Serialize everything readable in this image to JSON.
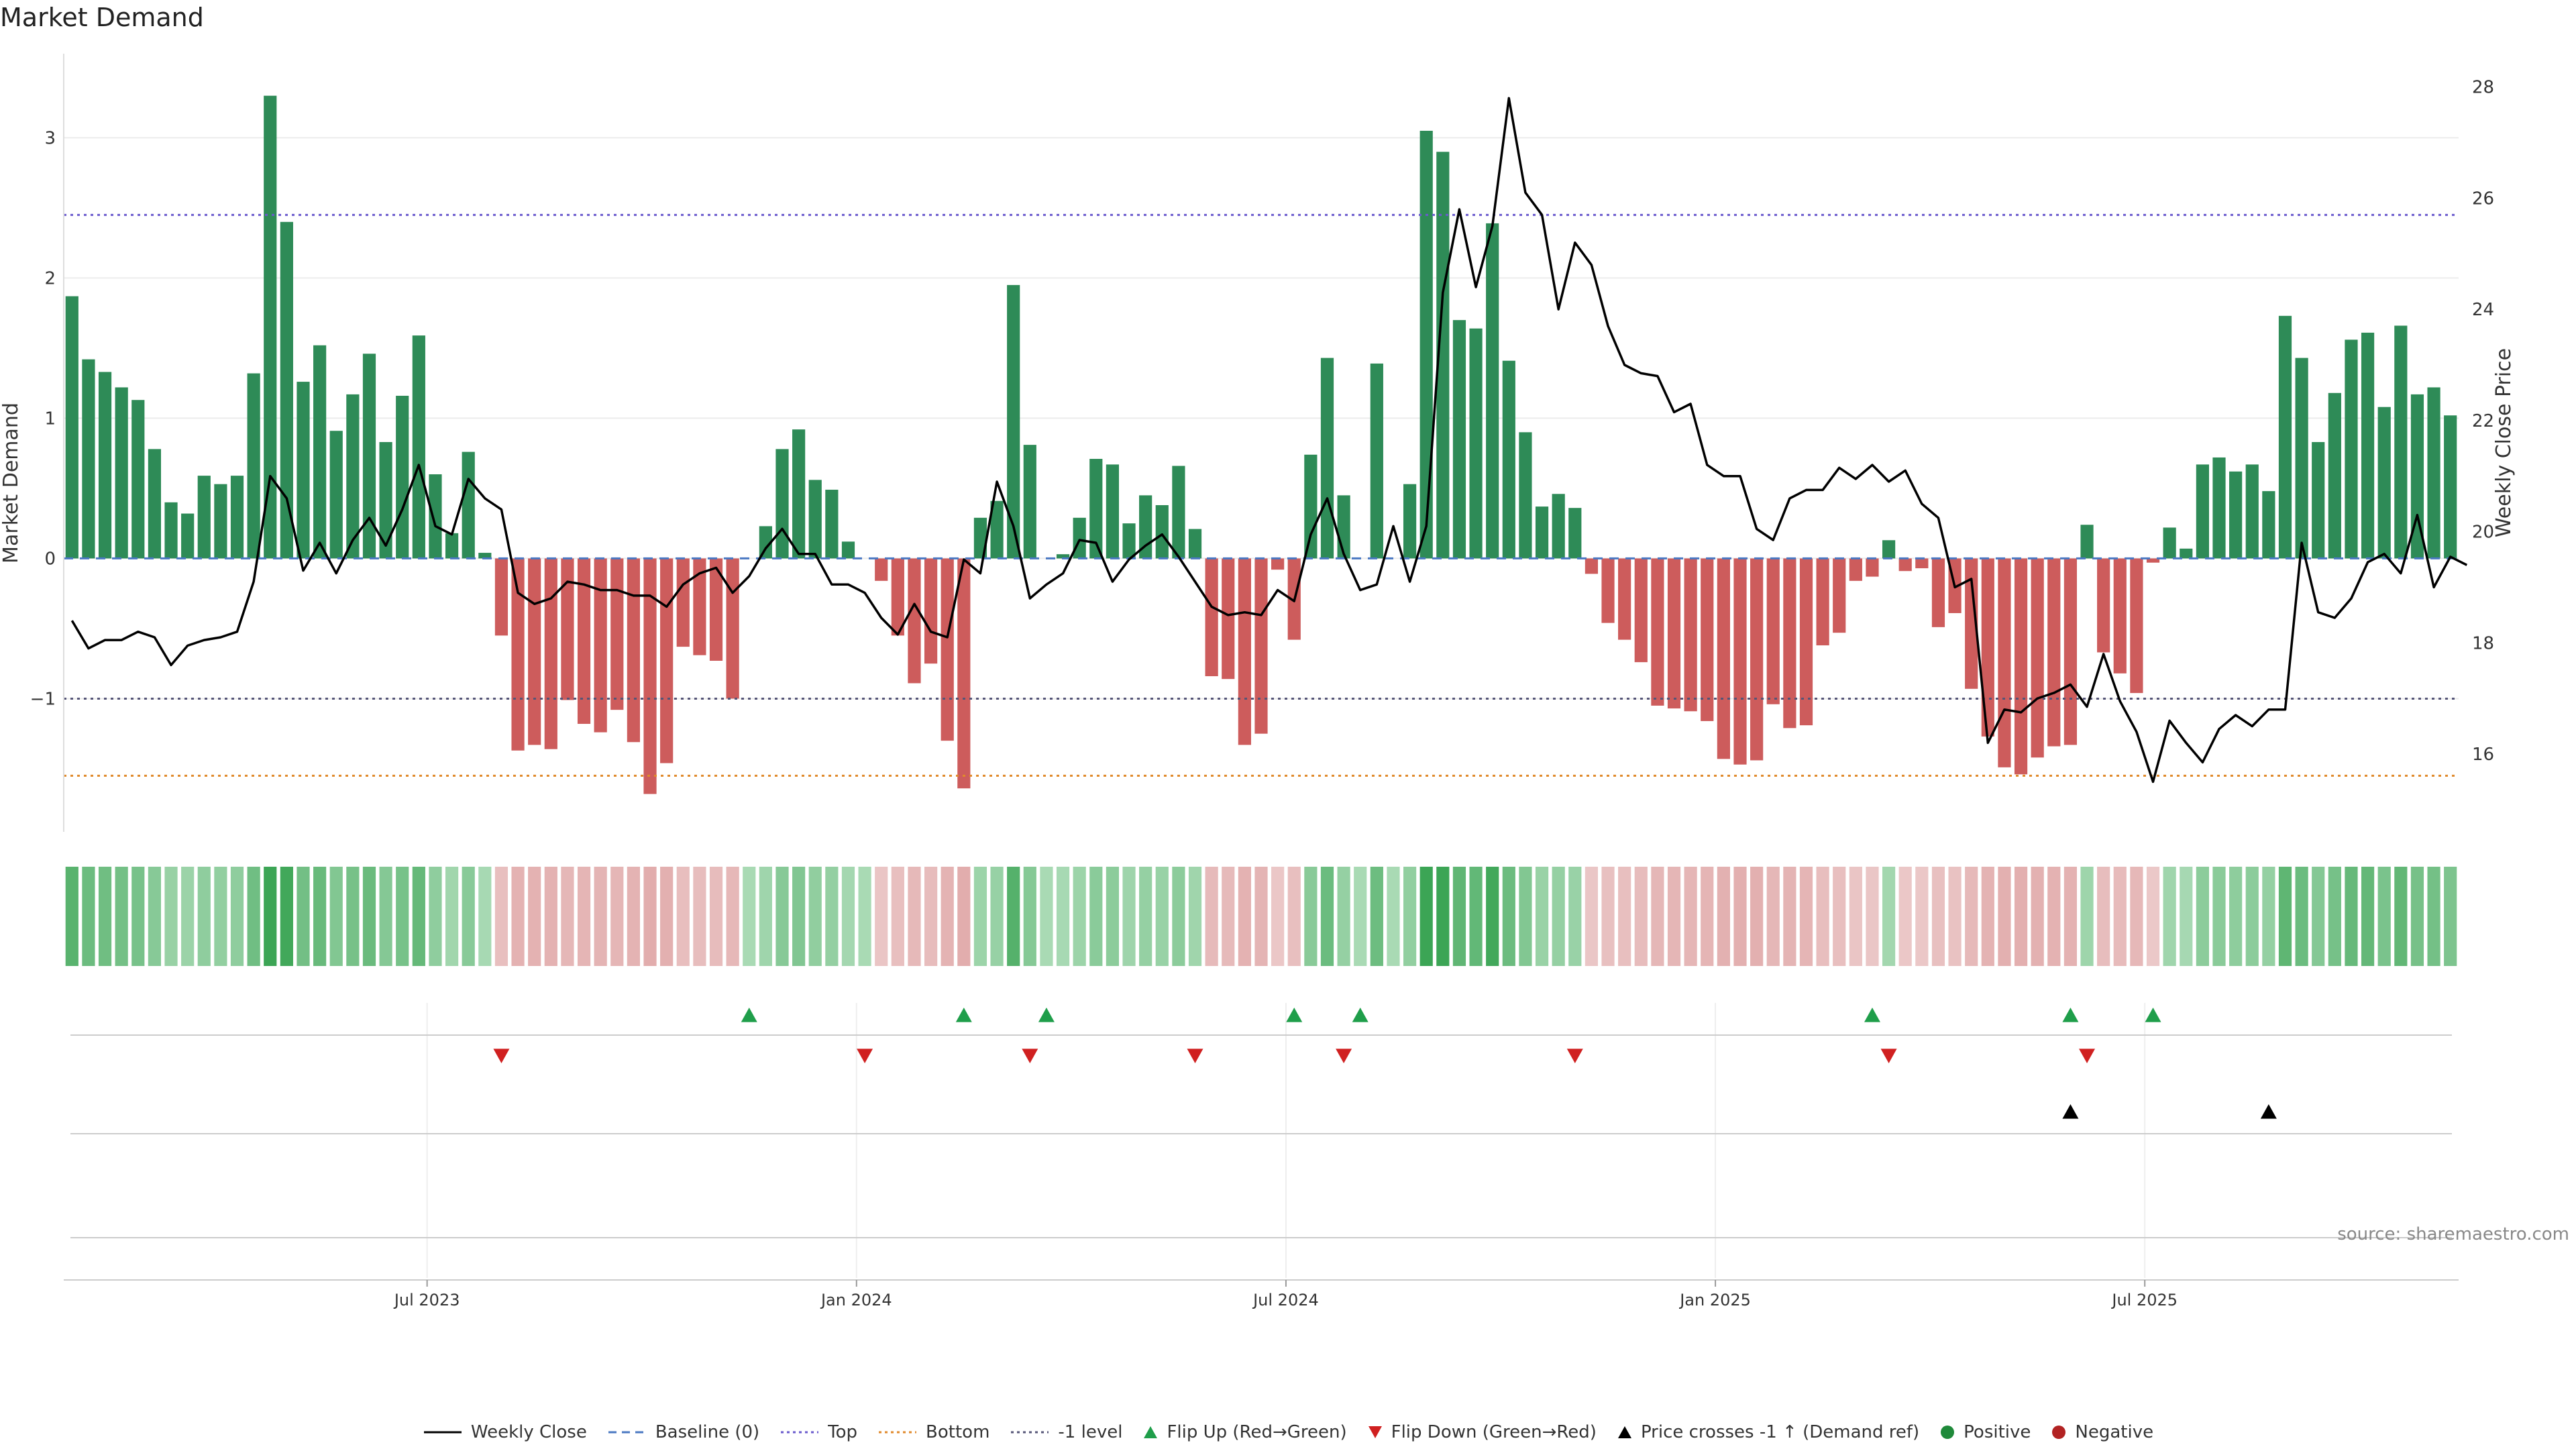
{
  "title": "Market Demand",
  "source": "source: sharemaestro.com",
  "colors": {
    "positive": "#2e8b57",
    "negative": "#cd5c5c",
    "price": "#000000",
    "baseline": "#4a78c2",
    "top": "#6a5acd",
    "bottom": "#e08a2c",
    "minus_one": "#555577",
    "flip_up": "#1f9e4a",
    "flip_down": "#d02020"
  },
  "legend": [
    {
      "label": "Weekly Close",
      "kind": "line-solid",
      "color": "#000000"
    },
    {
      "label": "Baseline (0)",
      "kind": "line-dash",
      "color": "#4a78c2"
    },
    {
      "label": "Top",
      "kind": "line-dot",
      "color": "#6a5acd"
    },
    {
      "label": "Bottom",
      "kind": "line-dot",
      "color": "#e08a2c"
    },
    {
      "label": "-1 level",
      "kind": "line-dot",
      "color": "#555577"
    },
    {
      "label": "Flip Up (Red→Green)",
      "kind": "tri-up",
      "color": "#1f9e4a"
    },
    {
      "label": "Flip Down (Green→Red)",
      "kind": "tri-down",
      "color": "#d02020"
    },
    {
      "label": "Price crosses -1 ↑ (Demand ref)",
      "kind": "tri-up",
      "color": "#000000"
    },
    {
      "label": "Positive",
      "kind": "dot",
      "color": "#1f8a3a"
    },
    {
      "label": "Negative",
      "kind": "dot",
      "color": "#b22222"
    }
  ],
  "chart_data": {
    "type": "bar",
    "ylabel": "Market Demand",
    "y2label": "Weekly Close Price",
    "ylim": [
      -1.95,
      3.6
    ],
    "y2lim": [
      14.6,
      28.6
    ],
    "yticks": [
      -1,
      0,
      1,
      2,
      3
    ],
    "y2ticks": [
      16,
      18,
      20,
      22,
      24,
      26,
      28
    ],
    "xticks": [
      {
        "label": "Jul 2023",
        "index": 22
      },
      {
        "label": "Jan 2024",
        "index": 48
      },
      {
        "label": "Jul 2024",
        "index": 74
      },
      {
        "label": "Jan 2025",
        "index": 100
      },
      {
        "label": "Jul 2025",
        "index": 126
      }
    ],
    "reference_lines": {
      "baseline": 0,
      "top": 2.45,
      "bottom": -1.55,
      "minus_one": -1
    },
    "demand": [
      1.87,
      1.42,
      1.33,
      1.22,
      1.13,
      0.78,
      0.4,
      0.32,
      0.59,
      0.53,
      0.59,
      1.32,
      3.3,
      2.4,
      1.26,
      1.52,
      0.91,
      1.17,
      1.46,
      0.83,
      1.16,
      1.59,
      0.6,
      0.18,
      0.76,
      0.04,
      -0.55,
      -1.37,
      -1.33,
      -1.36,
      -1.01,
      -1.18,
      -1.24,
      -1.08,
      -1.31,
      -1.68,
      -1.46,
      -0.63,
      -0.69,
      -0.73,
      -1.0,
      0.0,
      0.23,
      0.78,
      0.92,
      0.56,
      0.49,
      0.12,
      0.0,
      -0.16,
      -0.55,
      -0.89,
      -0.75,
      -1.3,
      -1.64,
      0.29,
      0.41,
      1.95,
      0.81,
      0.0,
      0.03,
      0.29,
      0.71,
      0.67,
      0.25,
      0.45,
      0.38,
      0.66,
      0.21,
      -0.84,
      -0.86,
      -1.33,
      -1.25,
      -0.08,
      -0.58,
      0.74,
      1.43,
      0.45,
      0.0,
      1.39,
      0.0,
      0.53,
      3.05,
      2.9,
      1.7,
      1.64,
      2.39,
      1.41,
      0.9,
      0.37,
      0.46,
      0.36,
      -0.11,
      -0.46,
      -0.58,
      -0.74,
      -1.05,
      -1.07,
      -1.09,
      -1.16,
      -1.43,
      -1.47,
      -1.44,
      -1.04,
      -1.21,
      -1.19,
      -0.62,
      -0.53,
      -0.16,
      -0.13,
      0.13,
      -0.09,
      -0.07,
      -0.49,
      -0.39,
      -0.93,
      -1.27,
      -1.49,
      -1.54,
      -1.42,
      -1.34,
      -1.33,
      0.24,
      -0.67,
      -0.82,
      -0.96,
      -0.03,
      0.22,
      0.07,
      0.67,
      0.72,
      0.62,
      0.67,
      0.48,
      1.73,
      1.43,
      0.83,
      1.18,
      1.56,
      1.61,
      1.08,
      1.66,
      1.17,
      1.22,
      1.02
    ],
    "price": [
      18.4,
      17.9,
      18.05,
      18.05,
      18.2,
      18.1,
      17.6,
      17.95,
      18.05,
      18.1,
      18.2,
      19.1,
      21.0,
      20.6,
      19.3,
      19.8,
      19.25,
      19.85,
      20.25,
      19.75,
      20.4,
      21.2,
      20.1,
      19.95,
      20.95,
      20.6,
      20.4,
      18.9,
      18.7,
      18.8,
      19.1,
      19.05,
      18.95,
      18.95,
      18.85,
      18.85,
      18.65,
      19.05,
      19.25,
      19.35,
      18.9,
      19.2,
      19.7,
      20.05,
      19.6,
      19.6,
      19.05,
      19.05,
      18.9,
      18.45,
      18.15,
      18.7,
      18.2,
      18.1,
      19.5,
      19.25,
      20.9,
      20.1,
      18.8,
      19.05,
      19.25,
      19.85,
      19.8,
      19.1,
      19.5,
      19.75,
      19.95,
      19.55,
      19.1,
      18.65,
      18.5,
      18.55,
      18.5,
      18.95,
      18.75,
      19.95,
      20.6,
      19.6,
      18.95,
      19.05,
      20.1,
      19.1,
      20.1,
      24.3,
      25.8,
      24.4,
      25.5,
      27.8,
      26.1,
      25.7,
      24.0,
      25.2,
      24.8,
      23.7,
      23.0,
      22.85,
      22.8,
      22.15,
      22.3,
      21.2,
      21.0,
      21.0,
      20.05,
      19.85,
      20.6,
      20.75,
      20.75,
      21.15,
      20.95,
      21.2,
      20.9,
      21.1,
      20.5,
      20.25,
      19.0,
      19.15,
      16.2,
      16.8,
      16.75,
      17.0,
      17.1,
      17.25,
      16.85,
      17.8,
      16.95,
      16.4,
      15.5,
      16.6,
      16.2,
      15.85,
      16.45,
      16.7,
      16.5,
      16.8,
      16.8,
      19.8,
      18.55,
      18.45,
      18.8,
      19.45,
      19.6,
      19.25,
      20.3,
      19.0,
      19.55,
      19.4
    ],
    "flip_up": [
      41,
      54,
      59,
      74,
      78,
      109,
      121,
      126
    ],
    "flip_down": [
      26,
      48,
      58,
      68,
      77,
      91,
      110,
      122
    ],
    "price_cross_up": [
      121,
      133
    ]
  }
}
